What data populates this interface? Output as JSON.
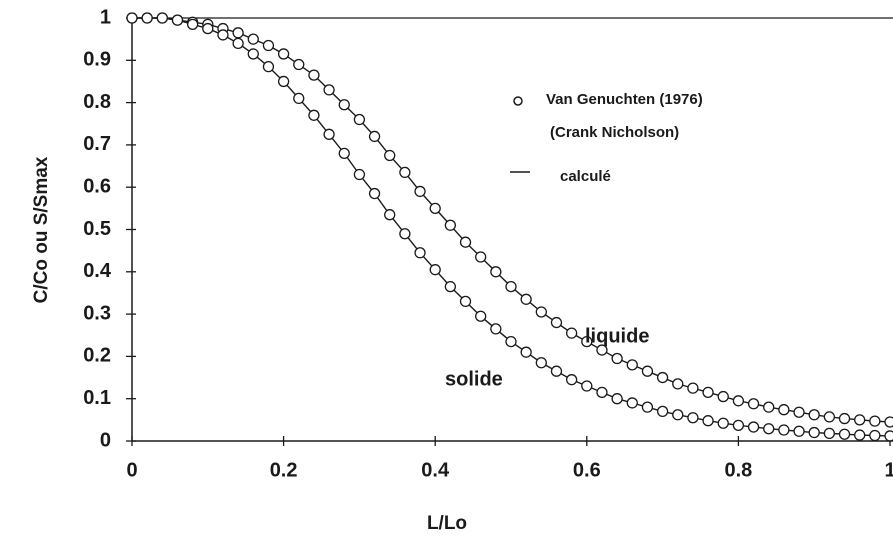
{
  "chart_data": {
    "type": "scatter",
    "xlabel": "L/Lo",
    "ylabel": "C/Co ou S/Smax",
    "xlim": [
      0,
      1
    ],
    "ylim": [
      0,
      1
    ],
    "xticks": [
      0,
      0.2,
      0.4,
      0.6,
      0.8,
      1
    ],
    "yticks": [
      0,
      0.1,
      0.2,
      0.3,
      0.4,
      0.5,
      0.6,
      0.7,
      0.8,
      0.9,
      1
    ],
    "legend": {
      "markers": "Van Genuchten (1976)",
      "markers_note": "(Crank Nicholson)",
      "line": "calculé"
    },
    "x": [
      0,
      0.02,
      0.04,
      0.06,
      0.08,
      0.1,
      0.12,
      0.14,
      0.16,
      0.18,
      0.2,
      0.22,
      0.24,
      0.26,
      0.28,
      0.3,
      0.32,
      0.34,
      0.36,
      0.38,
      0.4,
      0.42,
      0.44,
      0.46,
      0.48,
      0.5,
      0.52,
      0.54,
      0.56,
      0.58,
      0.6,
      0.62,
      0.64,
      0.66,
      0.68,
      0.7,
      0.72,
      0.74,
      0.76,
      0.78,
      0.8,
      0.82,
      0.84,
      0.86,
      0.88,
      0.9,
      0.92,
      0.94,
      0.96,
      0.98,
      1
    ],
    "series": [
      {
        "name": "liquide",
        "color": "#1a1a1a",
        "values": [
          1,
          1,
          1,
          0.995,
          0.99,
          0.985,
          0.975,
          0.965,
          0.95,
          0.935,
          0.915,
          0.89,
          0.865,
          0.83,
          0.795,
          0.76,
          0.72,
          0.675,
          0.635,
          0.59,
          0.55,
          0.51,
          0.47,
          0.435,
          0.4,
          0.365,
          0.335,
          0.305,
          0.28,
          0.255,
          0.235,
          0.215,
          0.195,
          0.18,
          0.165,
          0.15,
          0.135,
          0.125,
          0.115,
          0.105,
          0.095,
          0.088,
          0.08,
          0.074,
          0.068,
          0.062,
          0.057,
          0.053,
          0.05,
          0.047,
          0.045
        ]
      },
      {
        "name": "solide",
        "color": "#1a1a1a",
        "values": [
          1,
          1,
          1,
          0.995,
          0.985,
          0.975,
          0.96,
          0.94,
          0.915,
          0.885,
          0.85,
          0.81,
          0.77,
          0.725,
          0.68,
          0.63,
          0.585,
          0.535,
          0.49,
          0.445,
          0.405,
          0.365,
          0.33,
          0.295,
          0.265,
          0.235,
          0.21,
          0.185,
          0.165,
          0.145,
          0.13,
          0.115,
          0.1,
          0.09,
          0.08,
          0.07,
          0.062,
          0.055,
          0.048,
          0.042,
          0.037,
          0.033,
          0.029,
          0.026,
          0.023,
          0.02,
          0.018,
          0.016,
          0.014,
          0.013,
          0.012
        ]
      }
    ]
  }
}
